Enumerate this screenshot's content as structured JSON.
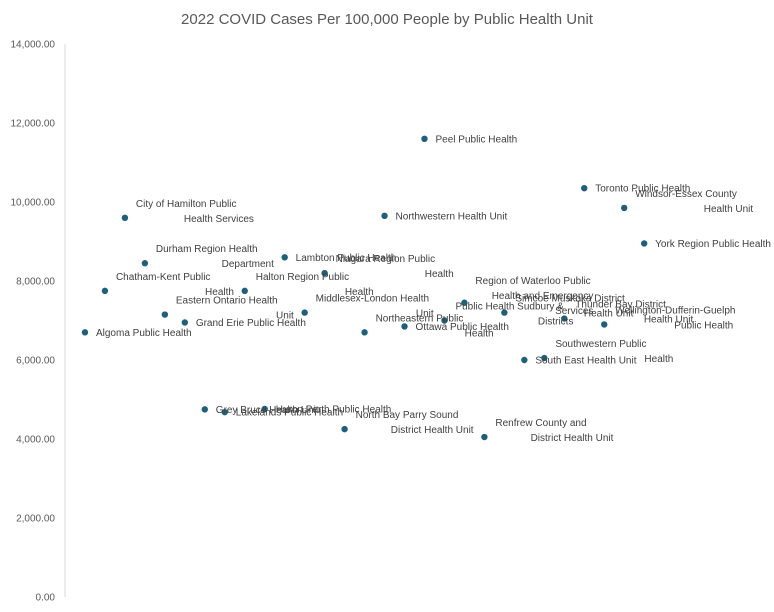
{
  "chart_data": {
    "type": "scatter",
    "title": "2022 COVID Cases Per 100,000 People by Public Health Unit",
    "xlabel": "",
    "ylabel": "",
    "ylim": [
      0,
      14000
    ],
    "xlim": [
      0,
      35
    ],
    "y_ticks": [
      0,
      2000,
      4000,
      6000,
      8000,
      10000,
      12000,
      14000
    ],
    "y_tick_labels": [
      "0.00",
      "2,000.00",
      "4,000.00",
      "6,000.00",
      "8,000.00",
      "10,000.00",
      "12,000.00",
      "14,000.00"
    ],
    "grid": false,
    "legend": "none",
    "marker_color": "#1f5f7a",
    "points": [
      {
        "x": 1,
        "y": 6700,
        "label": "Algoma Public Health"
      },
      {
        "x": 2,
        "y": 7750,
        "label": "Chatham-Kent Public Health"
      },
      {
        "x": 3,
        "y": 9600,
        "label": "City of Hamilton Public Health Services"
      },
      {
        "x": 4,
        "y": 8450,
        "label": "Durham Region Health Department"
      },
      {
        "x": 5,
        "y": 7150,
        "label": "Eastern Ontario Health Unit"
      },
      {
        "x": 6,
        "y": 6950,
        "label": "Grand Erie Public Health"
      },
      {
        "x": 7,
        "y": 4750,
        "label": "Grey Bruce Health Unit"
      },
      {
        "x": 8,
        "y": 4680,
        "label": "Lakelands Public Health"
      },
      {
        "x": 9,
        "y": 7750,
        "label": "Halton Region Public Health"
      },
      {
        "x": 10,
        "y": 4760,
        "label": "Huron Perth Public Health"
      },
      {
        "x": 11,
        "y": 8600,
        "label": "Lambton Public Health"
      },
      {
        "x": 12,
        "y": 7200,
        "label": "Middlesex-London Health Unit"
      },
      {
        "x": 13,
        "y": 8200,
        "label": "Niagara Region Public Health"
      },
      {
        "x": 14,
        "y": 4250,
        "label": "North Bay Parry Sound District Health Unit"
      },
      {
        "x": 15,
        "y": 6700,
        "label": "Northeastern Public Health"
      },
      {
        "x": 16,
        "y": 9650,
        "label": "Northwestern Health Unit"
      },
      {
        "x": 17,
        "y": 6850,
        "label": "Ottawa Public Health"
      },
      {
        "x": 18,
        "y": 11600,
        "label": "Peel Public Health"
      },
      {
        "x": 19,
        "y": 7000,
        "label": "Public Health Sudbury & Districts"
      },
      {
        "x": 20,
        "y": 7450,
        "label": "Region of Waterloo Public Health and Emergency Services"
      },
      {
        "x": 21,
        "y": 4050,
        "label": "Renfrew County and District Health Unit"
      },
      {
        "x": 22,
        "y": 7200,
        "label": "Simcoe Muskoka District Health Unit"
      },
      {
        "x": 23,
        "y": 6000,
        "label": "South East Health Unit"
      },
      {
        "x": 24,
        "y": 6050,
        "label": "Southwestern Public Health"
      },
      {
        "x": 25,
        "y": 7050,
        "label": "Thunder Bay District Health Unit"
      },
      {
        "x": 26,
        "y": 10350,
        "label": "Toronto Public Health"
      },
      {
        "x": 27,
        "y": 6900,
        "label": "Wellington-Dufferin-Guelph Public Health"
      },
      {
        "x": 28,
        "y": 9850,
        "label": "Windsor-Essex County Health Unit"
      },
      {
        "x": 29,
        "y": 8950,
        "label": "York Region Public Health"
      }
    ]
  }
}
